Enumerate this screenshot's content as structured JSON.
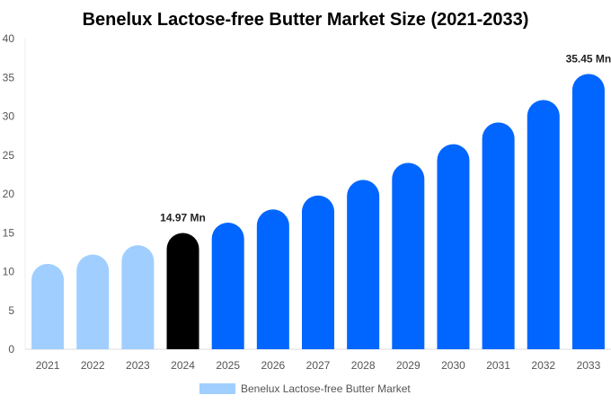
{
  "chart_data": {
    "type": "bar",
    "title": "Benelux Lactose-free Butter Market Size (2021-2033)",
    "categories": [
      "2021",
      "2022",
      "2023",
      "2024",
      "2025",
      "2026",
      "2027",
      "2028",
      "2029",
      "2030",
      "2031",
      "2032",
      "2033"
    ],
    "series": [
      {
        "name": "Benelux Lactose-free Butter Market",
        "values": [
          11.0,
          12.2,
          13.4,
          14.97,
          16.3,
          18.0,
          19.8,
          21.8,
          24.0,
          26.4,
          29.2,
          32.1,
          35.45
        ]
      }
    ],
    "data_labels": {
      "3": "14.97 Mn",
      "12": "35.45 Mn"
    },
    "bar_colors": {
      "historical": "#a0cfff",
      "base_year": "#000000",
      "forecast": "#0066ff"
    },
    "ylim": [
      0,
      40
    ],
    "yticks": [
      "0",
      "5",
      "10",
      "15",
      "20",
      "25",
      "30",
      "35",
      "40"
    ],
    "xlabel": "",
    "ylabel": "",
    "grid": false,
    "legend": "bottom"
  }
}
